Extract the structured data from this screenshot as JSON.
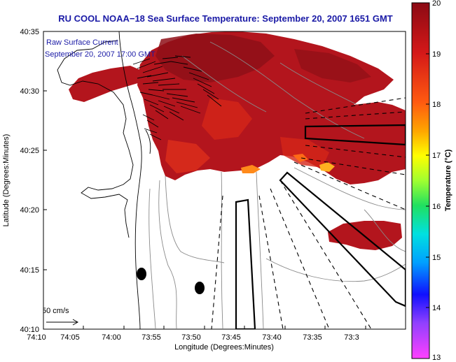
{
  "title": "RU COOL  NOAA−18  Sea Surface Temperature:  September 20, 2007 1651 GMT",
  "legend": {
    "line1": "Raw Surface Current",
    "line2": "September 20, 2007 17:00 GMT"
  },
  "axes": {
    "xlabel": "Longitude (Degrees:Minutes)",
    "ylabel": "Latitude (Degrees:Minutes)",
    "xticks": [
      "74:10",
      "74:05",
      "74:00",
      "73:55",
      "73:50",
      "73:45",
      "73:40",
      "73:35",
      "73:3"
    ],
    "yticks": [
      "40:35",
      "40:30",
      "40:25",
      "40:20",
      "40:15",
      "40:10"
    ]
  },
  "scale_label": "50 cm/s",
  "colorbar": {
    "label": "Temperature (°C)",
    "min": 13,
    "max": 20,
    "ticks": [
      "20",
      "19",
      "18",
      "17",
      "16",
      "15",
      "14",
      "13"
    ]
  },
  "colors": {
    "title": "#1a1aa6",
    "sst_main": "#b3151d",
    "sst_dark": "#8e0f17",
    "sst_warm": "#e0301b"
  }
}
